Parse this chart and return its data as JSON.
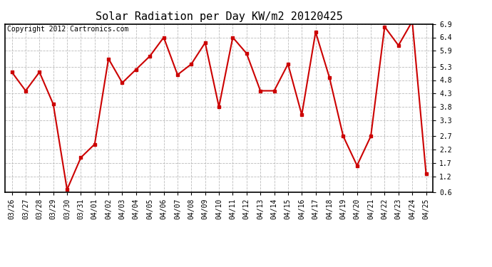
{
  "title": "Solar Radiation per Day KW/m2 20120425",
  "copyright": "Copyright 2012 Cartronics.com",
  "dates": [
    "03/26",
    "03/27",
    "03/28",
    "03/29",
    "03/30",
    "03/31",
    "04/01",
    "04/02",
    "04/03",
    "04/04",
    "04/05",
    "04/06",
    "04/07",
    "04/08",
    "04/09",
    "04/10",
    "04/11",
    "04/12",
    "04/13",
    "04/14",
    "04/15",
    "04/16",
    "04/17",
    "04/18",
    "04/19",
    "04/20",
    "04/21",
    "04/22",
    "04/23",
    "04/24",
    "04/25"
  ],
  "values": [
    5.1,
    4.4,
    5.1,
    3.9,
    0.7,
    1.9,
    2.4,
    5.6,
    4.7,
    5.2,
    5.7,
    6.4,
    5.0,
    5.4,
    6.2,
    3.8,
    6.4,
    5.8,
    4.4,
    4.4,
    5.4,
    3.5,
    6.6,
    4.9,
    2.7,
    1.6,
    2.7,
    6.8,
    6.1,
    7.0,
    1.3
  ],
  "line_color": "#cc0000",
  "marker": "s",
  "marker_size": 3,
  "marker_color": "#cc0000",
  "ylim": [
    0.6,
    6.9
  ],
  "yticks": [
    0.6,
    1.2,
    1.7,
    2.2,
    2.7,
    3.3,
    3.8,
    4.3,
    4.8,
    5.3,
    5.9,
    6.4,
    6.9
  ],
  "grid_color": "#bbbbbb",
  "grid_style": "--",
  "bg_color": "#ffffff",
  "title_fontsize": 11,
  "copyright_fontsize": 7,
  "tick_fontsize": 7
}
